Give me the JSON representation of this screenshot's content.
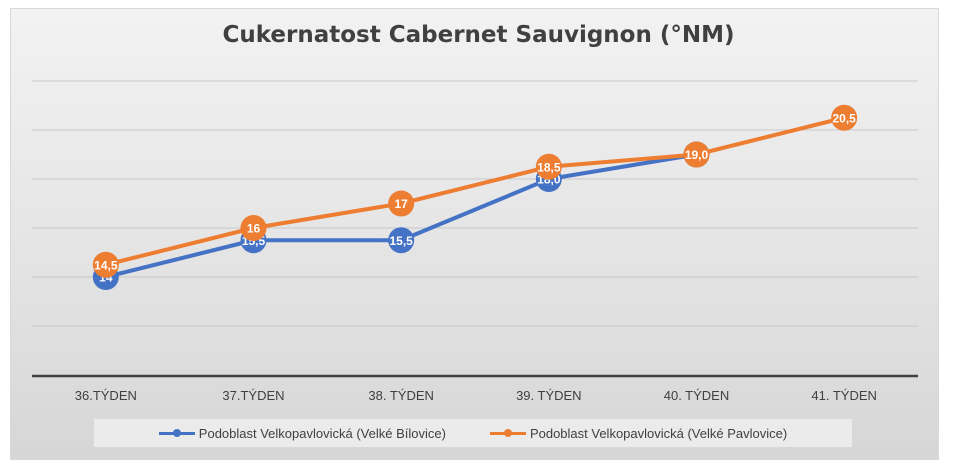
{
  "chart_data": {
    "type": "line",
    "title": "Cukernatost Cabernet Sauvignon (°NM)",
    "categories": [
      "36.TÝDEN",
      "37.TÝDEN",
      "38. TÝDEN",
      "39. TÝDEN",
      "40. TÝDEN",
      "41. TÝDEN"
    ],
    "series": [
      {
        "name": "Podoblast Velkopavlovická (Velké Bílovice)",
        "color": "#4472c4",
        "values": [
          14,
          15.5,
          15.5,
          18.0,
          19.0,
          null
        ],
        "labels": [
          "14",
          "15,5",
          "15,5",
          "18,0",
          "19,0",
          ""
        ]
      },
      {
        "name": "Podoblast Velkopavlovická (Velké Pavlovice)",
        "color": "#ed7d31",
        "values": [
          14.5,
          16,
          17,
          18.5,
          19.0,
          20.5
        ],
        "labels": [
          "14,5",
          "16",
          "17",
          "18,5",
          "19,0",
          "20,5"
        ]
      }
    ],
    "ylim": [
      10,
      22
    ],
    "grid": true,
    "legend_position": "bottom"
  }
}
